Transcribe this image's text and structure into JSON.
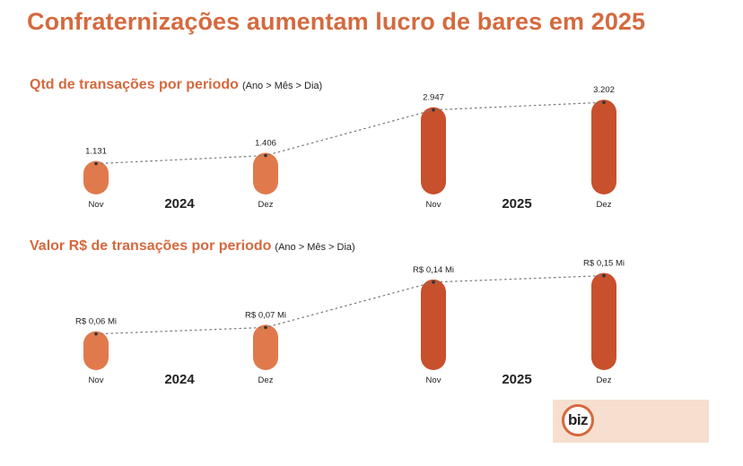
{
  "title": "Confraternizações aumentam lucro de bares em 2025",
  "colors": {
    "title": "#d46a3f",
    "bar_2024": "#e07a4c",
    "bar_2025": "#c8502c",
    "connector": "#777777"
  },
  "logo": {
    "text": "biz"
  },
  "chart_data": [
    {
      "type": "bar",
      "title": "Qtd de transações por periodo",
      "subtitle": "(Ano > Mês > Dia)",
      "categories": [
        "Nov",
        "Dez",
        "Nov",
        "Dez"
      ],
      "years": [
        "2024",
        "2024",
        "2025",
        "2025"
      ],
      "group_labels": [
        "2024",
        "2025"
      ],
      "values": [
        1131,
        1406,
        2947,
        3202
      ],
      "value_labels": [
        "1.131",
        "1.406",
        "2.947",
        "3.202"
      ],
      "ylim": [
        0,
        3300
      ]
    },
    {
      "type": "bar",
      "title": "Valor R$ de transações por periodo",
      "subtitle": "(Ano > Mês > Dia)",
      "categories": [
        "Nov",
        "Dez",
        "Nov",
        "Dez"
      ],
      "years": [
        "2024",
        "2024",
        "2025",
        "2025"
      ],
      "group_labels": [
        "2024",
        "2025"
      ],
      "values": [
        0.06,
        0.07,
        0.14,
        0.15
      ],
      "value_labels": [
        "R$ 0,06 Mi",
        "R$ 0,07 Mi",
        "R$ 0,14 Mi",
        "R$ 0,15 Mi"
      ],
      "ylim": [
        0,
        0.155
      ]
    }
  ]
}
